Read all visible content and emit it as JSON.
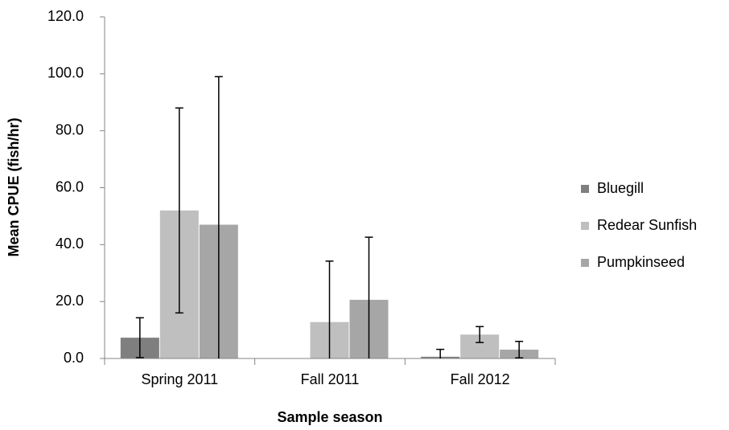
{
  "chart_data": {
    "type": "bar",
    "ylabel": "Mean CPUE (fish/hr)",
    "xlabel": "Sample season",
    "categories": [
      "Spring 2011",
      "Fall 2011",
      "Fall 2012"
    ],
    "series": [
      {
        "name": "Bluegill",
        "color": "#7f7f7f",
        "values": [
          7.3,
          0,
          0.6
        ],
        "errors": [
          7.0,
          null,
          2.6
        ]
      },
      {
        "name": "Redear Sunfish",
        "color": "#bfbfbf",
        "values": [
          52.0,
          12.8,
          8.4
        ],
        "errors": [
          36.0,
          21.4,
          2.8
        ]
      },
      {
        "name": "Pumpkinseed",
        "color": "#a6a6a6",
        "values": [
          47.0,
          20.6,
          3.1
        ],
        "errors": [
          52.0,
          22.0,
          2.9
        ]
      }
    ],
    "ylim": [
      0,
      120
    ],
    "yticks": [
      {
        "value": 0,
        "label": "0.0"
      },
      {
        "value": 20,
        "label": "20.0"
      },
      {
        "value": 40,
        "label": "40.0"
      },
      {
        "value": 60,
        "label": "60.0"
      },
      {
        "value": 80,
        "label": "80.0"
      },
      {
        "value": 100,
        "label": "100.0"
      },
      {
        "value": 120,
        "label": "120.0"
      }
    ],
    "legend": "right"
  }
}
